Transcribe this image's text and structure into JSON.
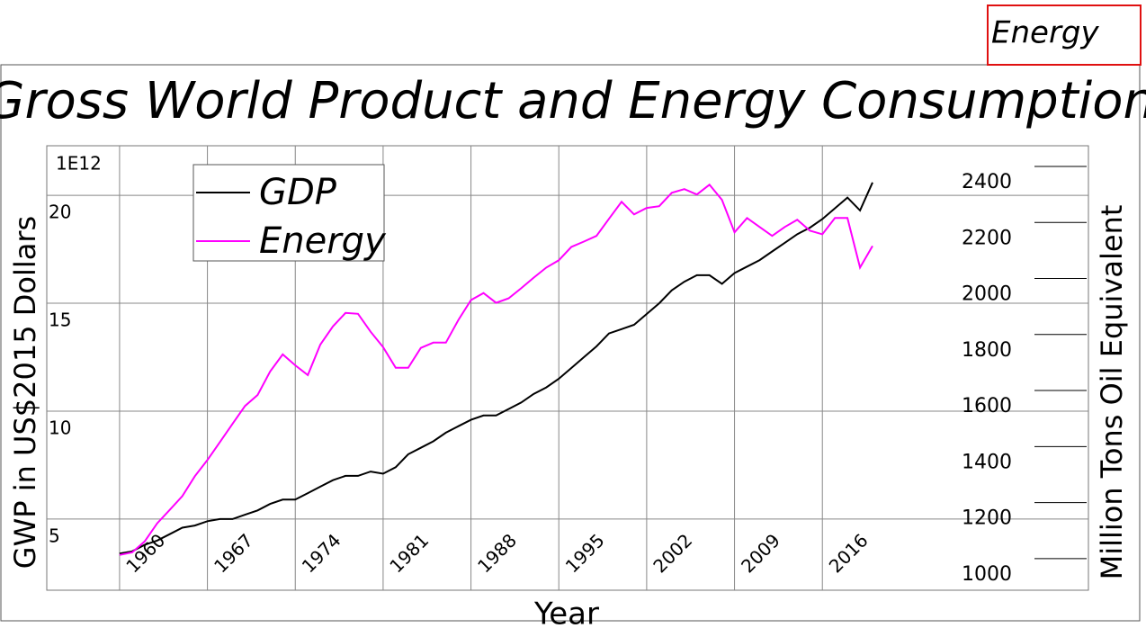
{
  "chart_data": {
    "type": "line",
    "title": "Gross World Product and Energy Consumption",
    "window_label": "Energy",
    "xlabel": "Year",
    "ylabel": "GWP in US$2015 Dollars",
    "y2label": "Million Tons Oil Equivalent",
    "y_multiplier": "1E12",
    "x": [
      1960,
      1961,
      1962,
      1963,
      1964,
      1965,
      1966,
      1967,
      1968,
      1969,
      1970,
      1971,
      1972,
      1973,
      1974,
      1975,
      1976,
      1977,
      1978,
      1979,
      1980,
      1981,
      1982,
      1983,
      1984,
      1985,
      1986,
      1987,
      1988,
      1989,
      1990,
      1991,
      1992,
      1993,
      1994,
      1995,
      1996,
      1997,
      1998,
      1999,
      2000,
      2001,
      2002,
      2003,
      2004,
      2005,
      2006,
      2007,
      2008,
      2009,
      2010,
      2011,
      2012,
      2013,
      2014,
      2015,
      2016,
      2017,
      2018,
      2019,
      2020
    ],
    "series": [
      {
        "name": "GDP",
        "color": "#000000",
        "axis": "y",
        "values": [
          3.4,
          3.5,
          3.8,
          4.0,
          4.3,
          4.6,
          4.7,
          4.9,
          5.0,
          5.0,
          5.2,
          5.4,
          5.7,
          5.9,
          5.9,
          6.2,
          6.5,
          6.8,
          7.0,
          7.0,
          7.2,
          7.1,
          7.4,
          8.0,
          8.3,
          8.6,
          9.0,
          9.3,
          9.6,
          9.8,
          9.8,
          10.1,
          10.4,
          10.8,
          11.1,
          11.5,
          12.0,
          12.5,
          13.0,
          13.6,
          13.8,
          14.0,
          14.5,
          15.0,
          15.6,
          16.0,
          16.3,
          16.3,
          15.9,
          16.4,
          16.7,
          17.0,
          17.4,
          17.8,
          18.2,
          18.5,
          18.9,
          19.4,
          19.9,
          19.3,
          20.6
        ]
      },
      {
        "name": "Energy",
        "color": "#ff00ff",
        "axis": "y2",
        "values": [
          1013,
          1022,
          1061,
          1126,
          1174,
          1223,
          1294,
          1352,
          1416,
          1481,
          1545,
          1584,
          1668,
          1729,
          1690,
          1655,
          1764,
          1829,
          1877,
          1874,
          1810,
          1755,
          1681,
          1681,
          1752,
          1771,
          1771,
          1852,
          1923,
          1948,
          1913,
          1929,
          1965,
          2003,
          2039,
          2065,
          2113,
          2132,
          2152,
          2213,
          2274,
          2229,
          2252,
          2258,
          2306,
          2319,
          2300,
          2335,
          2281,
          2165,
          2216,
          2184,
          2152,
          2184,
          2210,
          2171,
          2158,
          2216,
          2216,
          2039,
          2116
        ]
      }
    ],
    "xlim": [
      1954.2,
      2037.2
    ],
    "xticks": [
      1960,
      1967,
      1974,
      1981,
      1988,
      1995,
      2002,
      2009,
      2016
    ],
    "ylim": [
      1.7,
      22.3
    ],
    "yticks": [
      5,
      10,
      15,
      20
    ],
    "y2lim": [
      887,
      2474
    ],
    "y2ticks": [
      1000,
      1200,
      1400,
      1600,
      1800,
      2000,
      2200,
      2400
    ],
    "grid": true,
    "legend": "upper left"
  }
}
